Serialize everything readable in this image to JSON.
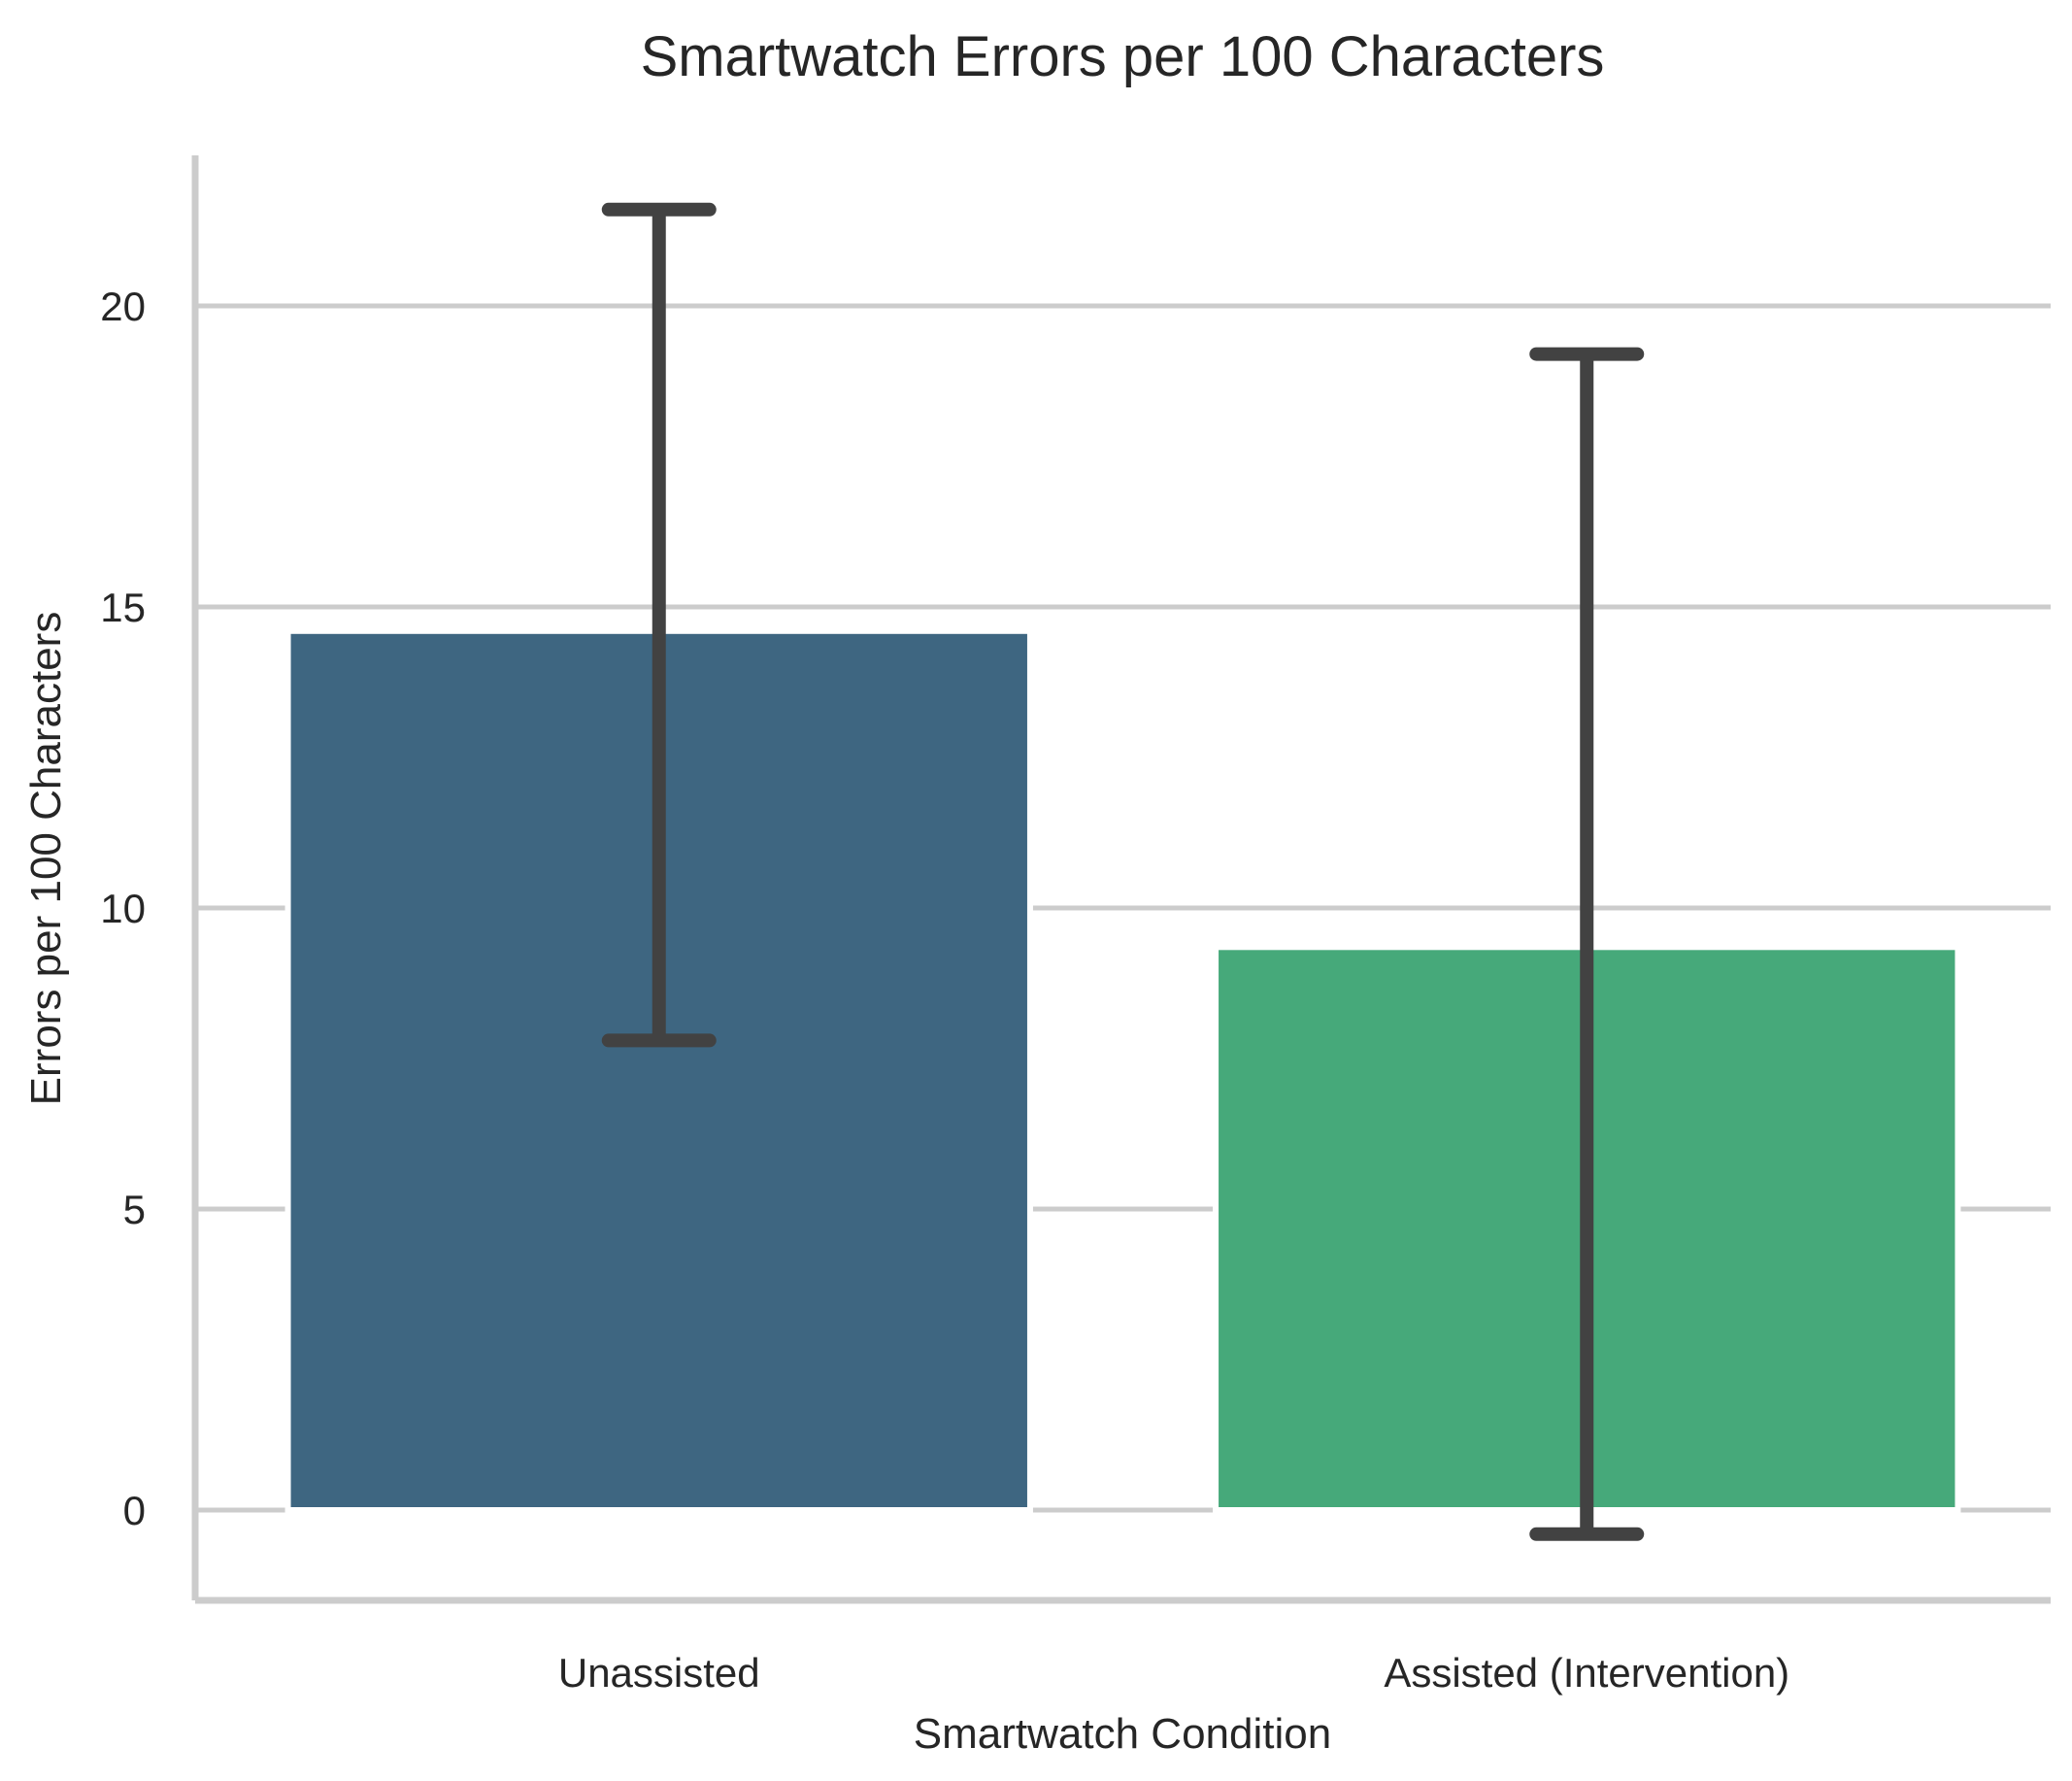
{
  "chart_data": {
    "type": "bar",
    "title": "Smartwatch Errors per 100 Characters",
    "xlabel": "Smartwatch Condition",
    "ylabel": "Errors per 100 Characters",
    "categories": [
      "Unassisted",
      "Assisted (Intervention)"
    ],
    "values": [
      14.6,
      9.35
    ],
    "error_low": [
      7.8,
      -0.4
    ],
    "error_high": [
      21.6,
      19.2
    ],
    "ylim": [
      -1.5,
      22.5
    ],
    "yticks": [
      0,
      5,
      10,
      15,
      20
    ],
    "ytick_labels": [
      "0",
      "5",
      "10",
      "15",
      "20"
    ],
    "grid": true,
    "bar_colors": [
      "#3e6681",
      "#46a97a"
    ],
    "error_color": "#424242",
    "grid_color": "#cccccc",
    "spine_color": "#cccccc"
  }
}
